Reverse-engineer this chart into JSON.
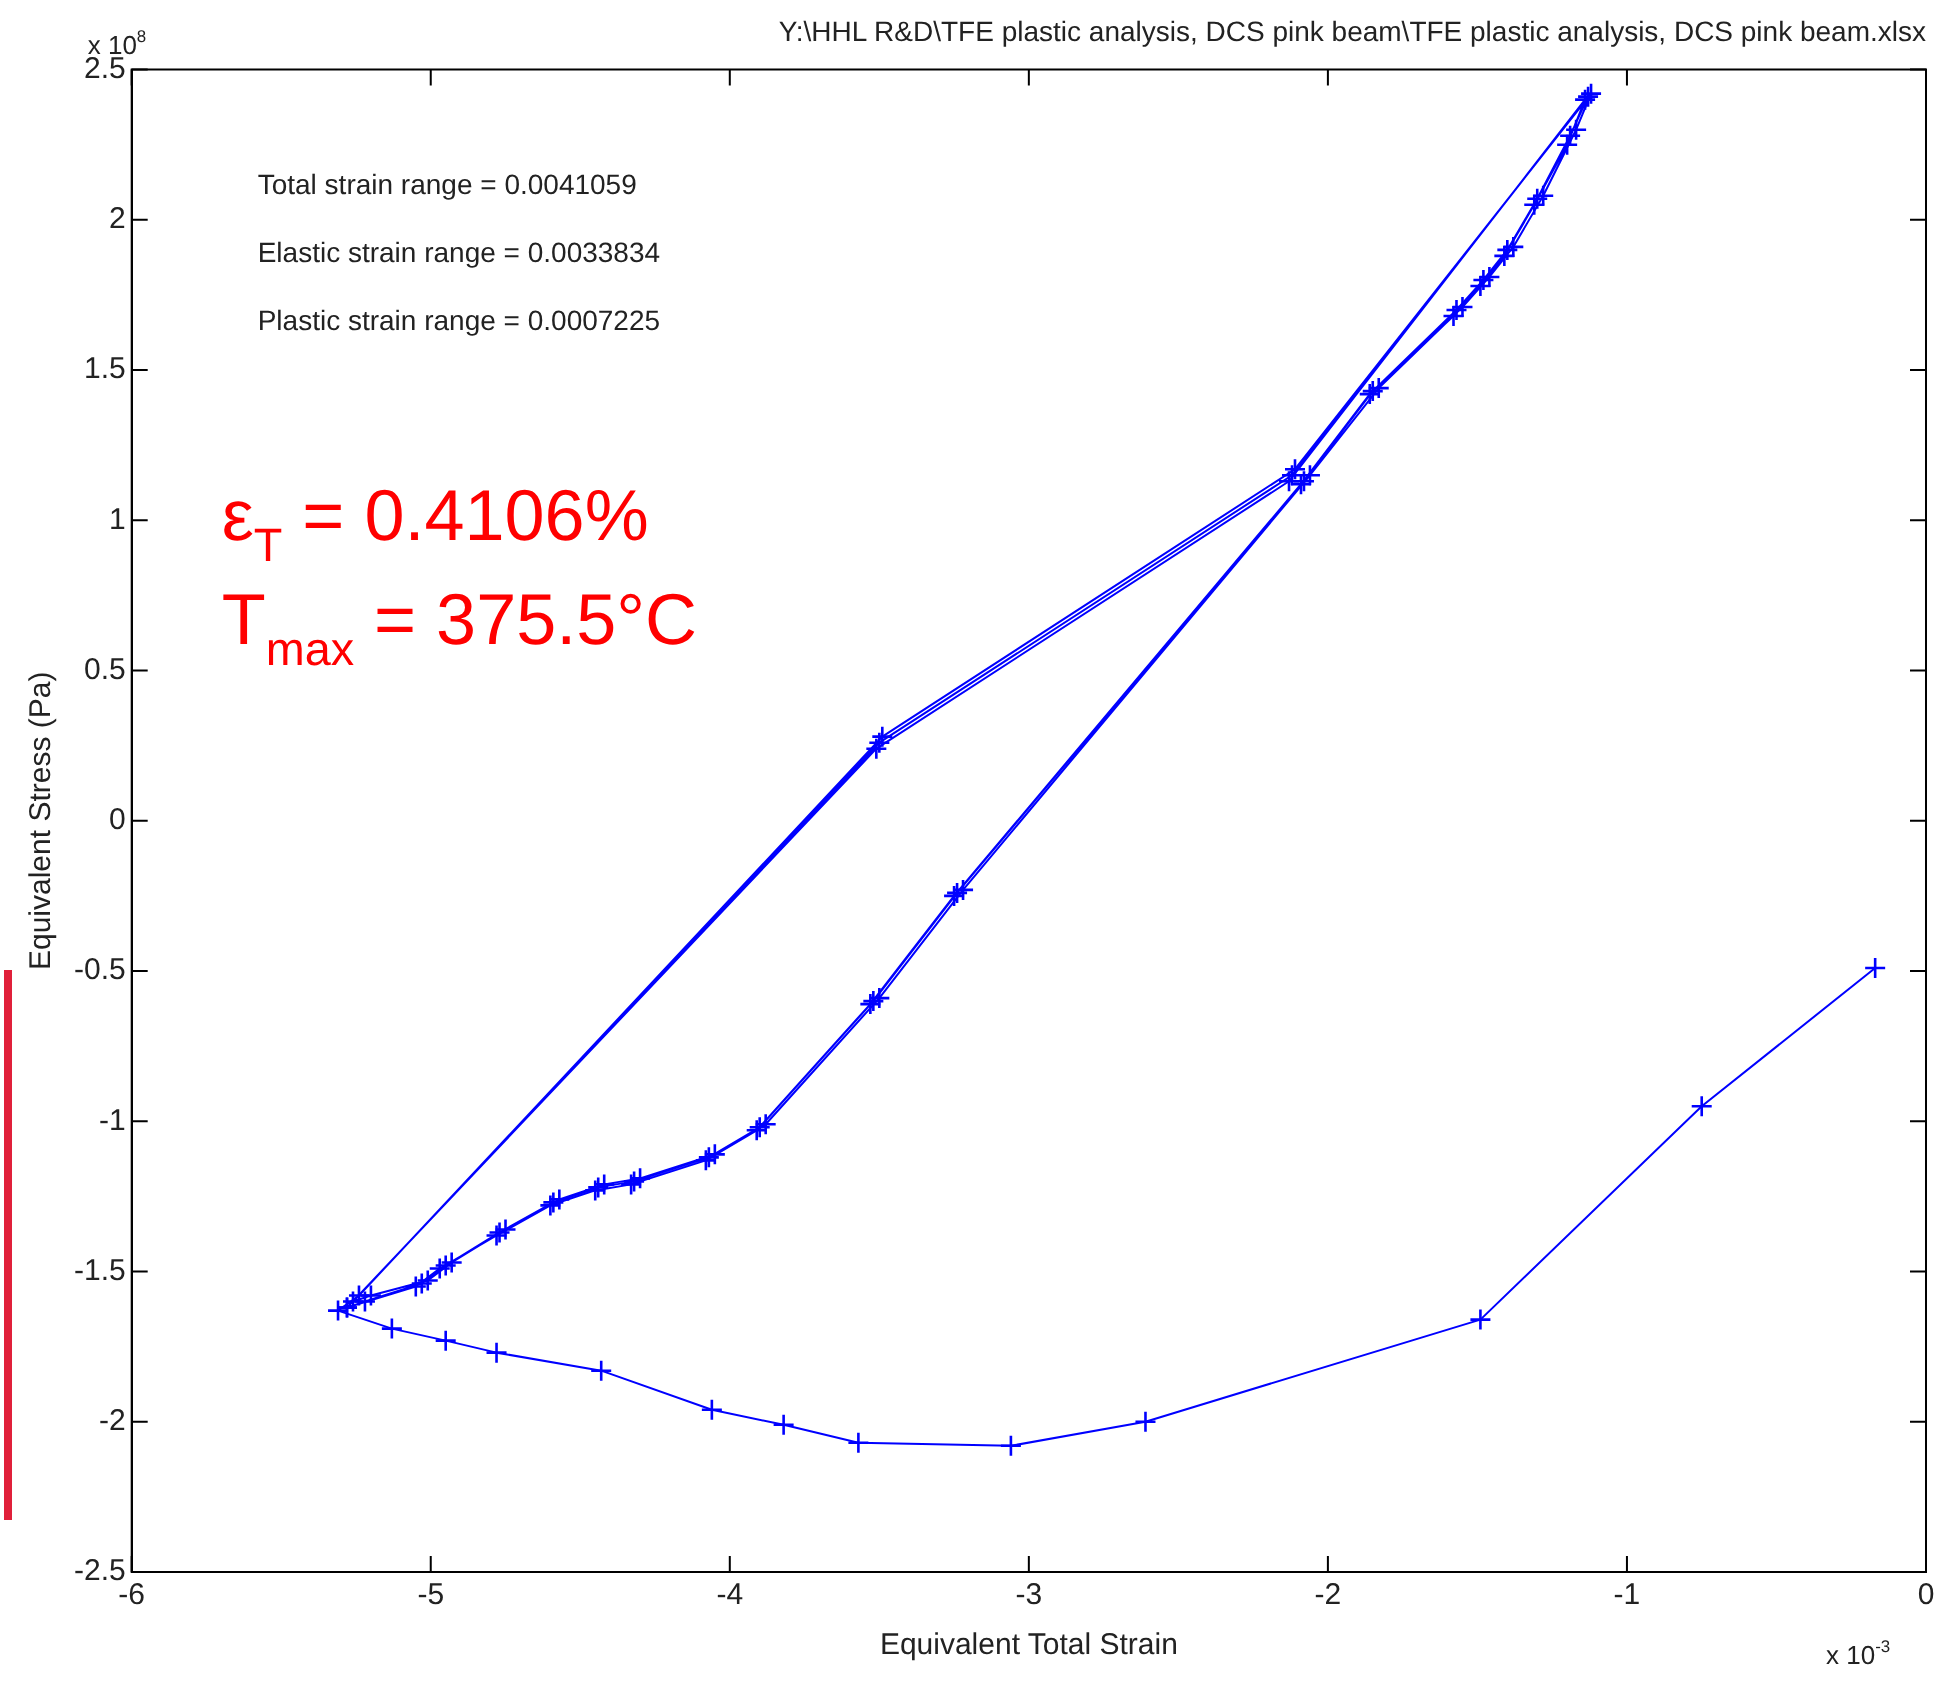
{
  "chart_data": {
    "type": "line",
    "title": "Y:\\HHL R&D\\TFE plastic analysis, DCS pink beam\\TFE plastic analysis, DCS pink beam.xlsx",
    "xlabel": "Equivalent Total Strain",
    "ylabel": "Equivalent Stress (Pa)",
    "annotations": [
      "Total strain range = 0.0041059",
      "Elastic strain range = 0.0033834",
      "Plastic strain range = 0.0007225",
      "ε$_{T}$ = 0.4106%",
      "T$_{max}$ = 375.5°C",
      "x 10$^{-3}$",
      "x 10$^{8}$"
    ],
    "series": [
      {
        "color": "#0000ff",
        "x": [
          -5.28,
          -5.05,
          -4.97,
          -4.78,
          -4.6,
          -4.45,
          -4.33,
          -4.08,
          -3.91,
          -3.53,
          -3.25,
          -2.09,
          -1.86,
          -1.58,
          -1.49,
          -1.41,
          -1.31,
          -1.2,
          -1.14,
          -2.13,
          -3.51,
          -5.28,
          -5.22,
          -5.03,
          -4.95,
          -4.77,
          -4.59,
          -4.44,
          -4.32,
          -4.07,
          -3.9,
          -3.52,
          -3.24,
          -2.08,
          -1.85,
          -1.57,
          -1.48,
          -1.4,
          -1.3,
          -1.19,
          -1.13,
          -2.12,
          -3.5,
          -5.26,
          -5.2,
          -5.01,
          -4.93,
          -4.75,
          -4.57,
          -4.42,
          -4.3,
          -4.05,
          -3.88,
          -3.5,
          -3.22,
          -2.06,
          -1.83,
          -1.55,
          -1.46,
          -1.38,
          -1.28,
          -1.17,
          -1.12,
          -2.11,
          -3.49,
          -5.24,
          -5.31,
          -5.13,
          -4.95,
          -4.78,
          -4.43,
          -4.06,
          -3.82,
          -3.57,
          -3.06,
          -2.61,
          -1.49,
          -0.75,
          -0.17
        ],
        "values": [
          -1.62,
          -1.55,
          -1.49,
          -1.38,
          -1.28,
          -1.23,
          -1.21,
          -1.13,
          -1.03,
          -0.61,
          -0.25,
          1.12,
          1.42,
          1.68,
          1.78,
          1.88,
          2.05,
          2.25,
          2.4,
          1.13,
          0.24,
          -1.62,
          -1.6,
          -1.54,
          -1.48,
          -1.37,
          -1.27,
          -1.22,
          -1.2,
          -1.12,
          -1.02,
          -0.6,
          -0.24,
          1.13,
          1.43,
          1.7,
          1.8,
          1.9,
          2.07,
          2.28,
          2.41,
          1.15,
          0.26,
          -1.6,
          -1.58,
          -1.53,
          -1.47,
          -1.36,
          -1.26,
          -1.21,
          -1.19,
          -1.11,
          -1.01,
          -0.59,
          -0.23,
          1.15,
          1.44,
          1.71,
          1.81,
          1.91,
          2.08,
          2.3,
          2.42,
          1.17,
          0.28,
          -1.58,
          -1.63,
          -1.69,
          -1.73,
          -1.77,
          -1.83,
          -1.96,
          -2.01,
          -2.07,
          -2.08,
          -2.0,
          -1.66,
          -0.95,
          -0.49
        ]
      }
    ],
    "xlim": [
      -6,
      0
    ],
    "xticks": [
      -6,
      -5,
      -4,
      -3,
      -2,
      -1,
      0
    ],
    "ylim": [
      -2.5,
      2.5
    ],
    "yticks": [
      -2.5,
      -2,
      -1.5,
      -1,
      -0.5,
      0,
      0.5,
      1,
      1.5,
      2,
      2.5
    ],
    "marker": "cross",
    "line_style": "solid",
    "grid": false,
    "legend": false
  }
}
